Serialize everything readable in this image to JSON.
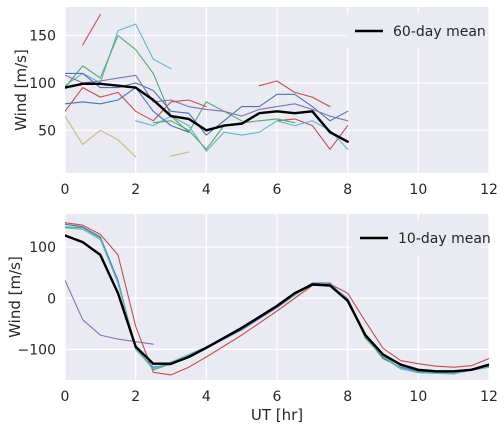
{
  "chart_data": [
    {
      "type": "line",
      "ylabel": "Wind [m/s]",
      "xlabel": "",
      "xlim": [
        0,
        12
      ],
      "ylim": [
        5,
        180
      ],
      "xticks": [
        0,
        2,
        4,
        6,
        8,
        10,
        12
      ],
      "xticklabels": [
        "0",
        "2",
        "4",
        "6",
        "8",
        "10",
        "12"
      ],
      "yticks": [
        50,
        100,
        150
      ],
      "yticklabels": [
        "50",
        "100",
        "150"
      ],
      "grid": true,
      "legend": {
        "location": "upper right",
        "entries": [
          "60-day mean"
        ]
      },
      "series": [
        {
          "color": "#c44e52",
          "points": [
            [
              0.5,
              140
            ],
            [
              1.0,
              172
            ]
          ]
        },
        {
          "color": "#64b5cd",
          "points": [
            [
              0.0,
              97
            ],
            [
              0.5,
              110
            ],
            [
              1.0,
              100
            ],
            [
              1.5,
              155
            ],
            [
              2.0,
              162
            ],
            [
              2.5,
              125
            ],
            [
              3.0,
              115
            ]
          ]
        },
        {
          "color": "#55a868",
          "points": [
            [
              0.0,
              95
            ],
            [
              0.5,
              118
            ],
            [
              1.0,
              105
            ],
            [
              1.5,
              150
            ],
            [
              2.0,
              135
            ],
            [
              2.5,
              110
            ],
            [
              3.0,
              65
            ],
            [
              3.5,
              48
            ],
            [
              4.0,
              80
            ],
            [
              4.5,
              70
            ],
            [
              5.0,
              60
            ]
          ]
        },
        {
          "color": "#4c72b0",
          "points": [
            [
              0.0,
              110
            ],
            [
              0.5,
              110
            ],
            [
              1.0,
              95
            ],
            [
              1.5,
              95
            ],
            [
              2.0,
              100
            ],
            [
              2.5,
              92
            ],
            [
              3.0,
              70
            ],
            [
              3.5,
              68
            ],
            [
              4.0,
              45
            ],
            [
              4.5,
              60
            ],
            [
              5.0,
              75
            ],
            [
              5.5,
              75
            ],
            [
              6.0,
              88
            ],
            [
              6.5,
              88
            ],
            [
              7.0,
              75
            ],
            [
              7.5,
              60
            ],
            [
              8.0,
              70
            ]
          ]
        },
        {
          "color": "#8172b2",
          "points": [
            [
              0.0,
              108
            ],
            [
              0.5,
              100
            ],
            [
              1.0,
              102
            ],
            [
              1.5,
              105
            ],
            [
              2.0,
              108
            ],
            [
              2.5,
              80
            ],
            [
              3.0,
              82
            ],
            [
              3.5,
              75
            ],
            [
              4.0,
              72
            ],
            [
              4.5,
              70
            ],
            [
              5.0,
              65
            ],
            [
              5.5,
              72
            ],
            [
              6.0,
              75
            ],
            [
              6.5,
              78
            ],
            [
              7.0,
              72
            ],
            [
              7.5,
              65
            ],
            [
              8.0,
              60
            ]
          ]
        },
        {
          "color": "#ccb974",
          "points": [
            [
              0.0,
              65
            ],
            [
              0.5,
              35
            ],
            [
              1.0,
              50
            ],
            [
              1.5,
              40
            ],
            [
              2.0,
              22
            ]
          ]
        },
        {
          "color": "#ccb974",
          "points": [
            [
              3.0,
              23
            ],
            [
              3.5,
              27
            ]
          ]
        },
        {
          "color": "#c44e52",
          "points": [
            [
              0.0,
              70
            ],
            [
              0.5,
              95
            ],
            [
              1.0,
              85
            ],
            [
              1.5,
              90
            ],
            [
              2.0,
              70
            ],
            [
              2.5,
              60
            ],
            [
              3.0,
              80
            ],
            [
              3.5,
              82
            ],
            [
              4.0,
              75
            ]
          ]
        },
        {
          "color": "#c44e52",
          "points": [
            [
              5.5,
              97
            ],
            [
              6.0,
              102
            ],
            [
              6.5,
              90
            ],
            [
              7.0,
              85
            ],
            [
              7.5,
              75
            ]
          ]
        },
        {
          "color": "#c44e52",
          "points": [
            [
              6.0,
              60
            ],
            [
              6.5,
              62
            ],
            [
              7.0,
              55
            ],
            [
              7.5,
              30
            ],
            [
              8.0,
              55
            ]
          ]
        },
        {
          "color": "#64b5cd",
          "points": [
            [
              2.0,
              60
            ],
            [
              2.5,
              55
            ],
            [
              3.0,
              65
            ],
            [
              3.5,
              55
            ],
            [
              4.0,
              28
            ],
            [
              4.5,
              48
            ],
            [
              5.0,
              45
            ],
            [
              5.5,
              48
            ],
            [
              6.0,
              60
            ],
            [
              6.5,
              55
            ],
            [
              7.0,
              60
            ],
            [
              7.5,
              50
            ],
            [
              8.0,
              30
            ]
          ]
        },
        {
          "color": "#55a868",
          "points": [
            [
              2.5,
              58
            ],
            [
              3.0,
              60
            ],
            [
              3.5,
              50
            ],
            [
              4.0,
              30
            ],
            [
              4.5,
              55
            ],
            [
              5.0,
              58
            ],
            [
              5.5,
              60
            ],
            [
              6.0,
              62
            ],
            [
              6.5,
              58
            ]
          ]
        },
        {
          "color": "#4c72b0",
          "points": [
            [
              0.0,
              78
            ],
            [
              0.5,
              80
            ],
            [
              1.0,
              78
            ],
            [
              1.5,
              82
            ],
            [
              2.0,
              95
            ],
            [
              2.5,
              70
            ],
            [
              3.0,
              55
            ],
            [
              3.5,
              48
            ]
          ]
        },
        {
          "color": "#000000",
          "width": 2.4,
          "points": [
            [
              0.0,
              95
            ],
            [
              0.5,
              99
            ],
            [
              1.0,
              99
            ],
            [
              1.5,
              97
            ],
            [
              2.0,
              95
            ],
            [
              2.5,
              82
            ],
            [
              3.0,
              65
            ],
            [
              3.5,
              62
            ],
            [
              4.0,
              50
            ],
            [
              4.5,
              55
            ],
            [
              5.0,
              57
            ],
            [
              5.5,
              68
            ],
            [
              6.0,
              70
            ],
            [
              6.5,
              68
            ],
            [
              7.0,
              70
            ],
            [
              7.5,
              48
            ],
            [
              8.0,
              38
            ]
          ]
        }
      ]
    },
    {
      "type": "line",
      "ylabel": "Wind [m/s]",
      "xlabel": "UT [hr]",
      "xlim": [
        0,
        12
      ],
      "ylim": [
        -160,
        165
      ],
      "xticks": [
        0,
        2,
        4,
        6,
        8,
        10,
        12
      ],
      "xticklabels": [
        "0",
        "2",
        "4",
        "6",
        "8",
        "10",
        "12"
      ],
      "yticks": [
        -100,
        0,
        100
      ],
      "yticklabels": [
        "−100",
        "0",
        "100"
      ],
      "grid": true,
      "legend": {
        "location": "upper right",
        "entries": [
          "10-day mean"
        ]
      },
      "series": [
        {
          "color": "#8172b2",
          "points": [
            [
              0.0,
              35
            ],
            [
              0.5,
              -42
            ],
            [
              1.0,
              -72
            ],
            [
              1.5,
              -80
            ],
            [
              2.0,
              -85
            ],
            [
              2.5,
              -90
            ]
          ]
        },
        {
          "color": "#c44e52",
          "points": [
            [
              0.0,
              148
            ],
            [
              0.5,
              143
            ],
            [
              1.0,
              125
            ],
            [
              1.5,
              85
            ],
            [
              2.0,
              -55
            ],
            [
              2.5,
              -145
            ],
            [
              3.0,
              -150
            ],
            [
              3.5,
              -135
            ],
            [
              4.0,
              -115
            ],
            [
              5.0,
              -72
            ],
            [
              6.0,
              -25
            ],
            [
              7.0,
              25
            ],
            [
              7.5,
              28
            ],
            [
              8.0,
              10
            ],
            [
              8.5,
              -45
            ],
            [
              9.0,
              -98
            ],
            [
              9.5,
              -122
            ],
            [
              10.0,
              -128
            ],
            [
              10.5,
              -133
            ],
            [
              11.0,
              -135
            ],
            [
              11.5,
              -132
            ],
            [
              12.0,
              -118
            ]
          ]
        },
        {
          "color": "#4c72b0",
          "points": [
            [
              0.0,
              145
            ],
            [
              0.5,
              140
            ],
            [
              1.0,
              120
            ],
            [
              1.5,
              35
            ],
            [
              2.0,
              -100
            ],
            [
              2.5,
              -135
            ],
            [
              3.0,
              -130
            ],
            [
              4.0,
              -98
            ],
            [
              5.0,
              -62
            ],
            [
              6.0,
              -18
            ],
            [
              7.0,
              30
            ],
            [
              7.5,
              30
            ],
            [
              8.0,
              -5
            ],
            [
              8.5,
              -75
            ],
            [
              9.0,
              -118
            ],
            [
              9.5,
              -135
            ],
            [
              10.0,
              -143
            ],
            [
              11.0,
              -147
            ],
            [
              12.0,
              -132
            ]
          ]
        },
        {
          "color": "#55a868",
          "points": [
            [
              0.0,
              140
            ],
            [
              0.5,
              138
            ],
            [
              1.0,
              118
            ],
            [
              1.5,
              30
            ],
            [
              2.0,
              -95
            ],
            [
              2.5,
              -140
            ],
            [
              3.0,
              -128
            ],
            [
              4.0,
              -96
            ],
            [
              5.0,
              -58
            ],
            [
              6.0,
              -15
            ],
            [
              7.0,
              28
            ],
            [
              7.5,
              27
            ],
            [
              8.0,
              -2
            ],
            [
              8.5,
              -78
            ],
            [
              9.0,
              -115
            ],
            [
              9.5,
              -138
            ],
            [
              10.0,
              -145
            ],
            [
              11.0,
              -147
            ],
            [
              12.0,
              -135
            ]
          ]
        },
        {
          "color": "#64b5cd",
          "points": [
            [
              0.0,
              138
            ],
            [
              0.5,
              135
            ],
            [
              1.0,
              115
            ],
            [
              1.5,
              30
            ],
            [
              2.0,
              -100
            ],
            [
              2.5,
              -138
            ],
            [
              3.0,
              -125
            ],
            [
              4.0,
              -95
            ],
            [
              5.0,
              -60
            ],
            [
              6.0,
              -15
            ],
            [
              7.0,
              27
            ],
            [
              7.5,
              27
            ],
            [
              8.0,
              0
            ],
            [
              8.5,
              -72
            ],
            [
              9.0,
              -112
            ],
            [
              9.5,
              -137
            ],
            [
              10.0,
              -146
            ],
            [
              11.0,
              -148
            ],
            [
              12.0,
              -134
            ]
          ]
        },
        {
          "color": "#000000",
          "width": 2.4,
          "points": [
            [
              0.0,
              123
            ],
            [
              0.5,
              110
            ],
            [
              1.0,
              85
            ],
            [
              1.5,
              10
            ],
            [
              2.0,
              -95
            ],
            [
              2.5,
              -128
            ],
            [
              3.0,
              -128
            ],
            [
              3.5,
              -115
            ],
            [
              4.0,
              -97
            ],
            [
              5.0,
              -58
            ],
            [
              6.0,
              -15
            ],
            [
              6.5,
              10
            ],
            [
              7.0,
              27
            ],
            [
              7.5,
              25
            ],
            [
              8.0,
              -5
            ],
            [
              8.5,
              -72
            ],
            [
              9.0,
              -110
            ],
            [
              9.5,
              -130
            ],
            [
              10.0,
              -140
            ],
            [
              10.5,
              -143
            ],
            [
              11.0,
              -143
            ],
            [
              11.5,
              -140
            ],
            [
              12.0,
              -130
            ]
          ]
        }
      ]
    }
  ]
}
